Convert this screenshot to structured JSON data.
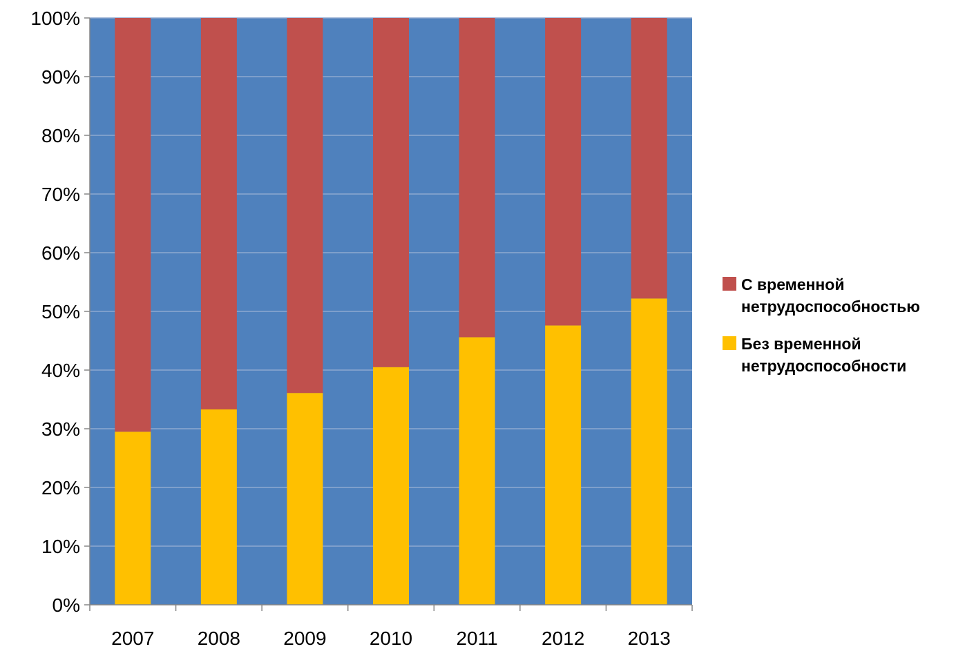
{
  "chart_data": {
    "type": "bar",
    "stacked": true,
    "percent_stacked": true,
    "categories": [
      "2007",
      "2008",
      "2009",
      "2010",
      "2011",
      "2012",
      "2013"
    ],
    "series": [
      {
        "name": "Без временной нетрудоспособности",
        "color": "#FFC000",
        "values": [
          29.5,
          33.3,
          36.1,
          40.5,
          45.6,
          47.6,
          52.2
        ]
      },
      {
        "name": "С временной нетрудоспособностью",
        "color": "#C0504D",
        "values": [
          70.5,
          66.7,
          63.9,
          59.5,
          54.4,
          52.4,
          47.8
        ]
      }
    ],
    "legend_entries": [
      {
        "series": 1,
        "lines": [
          "С временной",
          "нетрудоспособностью"
        ]
      },
      {
        "series": 0,
        "lines": [
          "Без временной",
          "нетрудоспособности"
        ]
      }
    ],
    "y_ticks": [
      "0%",
      "10%",
      "20%",
      "30%",
      "40%",
      "50%",
      "60%",
      "70%",
      "80%",
      "90%",
      "100%"
    ],
    "ylim": [
      0,
      100
    ],
    "title": "",
    "xlabel": "",
    "ylabel": "",
    "grid": true,
    "legend_position": "right",
    "plot_background": "#4F81BD",
    "gridline_color": "#8EA9D0"
  }
}
